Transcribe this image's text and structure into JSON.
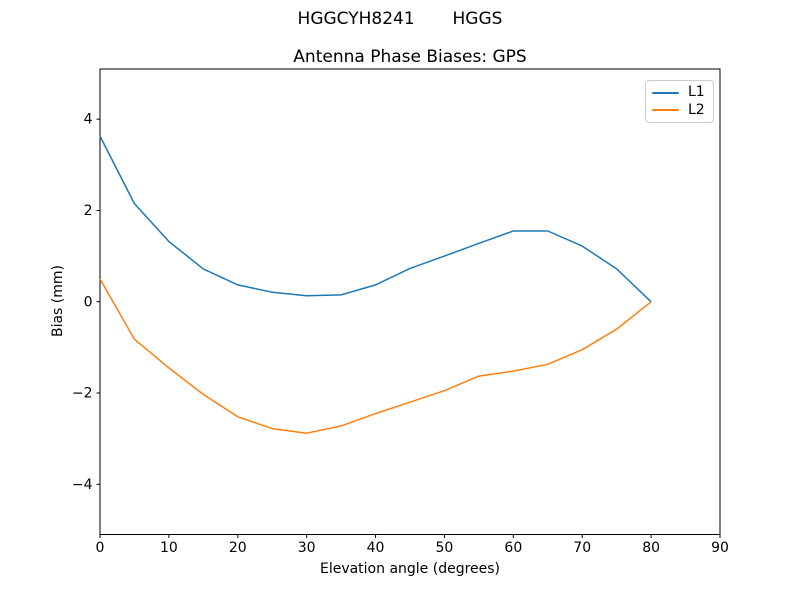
{
  "suptitle": "HGGCYH8241       HGGS",
  "chart_data": {
    "type": "line",
    "title": "Antenna Phase Biases: GPS",
    "xlabel": "Elevation angle (degrees)",
    "ylabel": "Bias (mm)",
    "xlim": [
      0,
      90
    ],
    "ylim": [
      -5.1,
      5.1
    ],
    "xticks": [
      0,
      10,
      20,
      30,
      40,
      50,
      60,
      70,
      80,
      90
    ],
    "xtick_labels": [
      "0",
      "10",
      "20",
      "30",
      "40",
      "50",
      "60",
      "70",
      "80",
      "90"
    ],
    "yticks": [
      -4,
      -2,
      0,
      2,
      4
    ],
    "ytick_labels": [
      "−4",
      "−2",
      "0",
      "2",
      "4"
    ],
    "grid": false,
    "legend_position": "upper right",
    "x": [
      0,
      5,
      10,
      15,
      20,
      25,
      30,
      35,
      40,
      45,
      50,
      55,
      60,
      65,
      70,
      75,
      80
    ],
    "series": [
      {
        "name": "L1",
        "color": "#1f77b4",
        "values": [
          3.63,
          2.15,
          1.32,
          0.72,
          0.37,
          0.21,
          0.13,
          0.15,
          0.37,
          0.73,
          1.0,
          1.28,
          1.55,
          1.55,
          1.22,
          0.72,
          0.0
        ]
      },
      {
        "name": "L2",
        "color": "#ff7f0e",
        "values": [
          0.5,
          -0.82,
          -1.45,
          -2.03,
          -2.52,
          -2.78,
          -2.88,
          -2.72,
          -2.45,
          -2.2,
          -1.95,
          -1.63,
          -1.52,
          -1.37,
          -1.05,
          -0.6,
          0.0
        ]
      }
    ]
  }
}
